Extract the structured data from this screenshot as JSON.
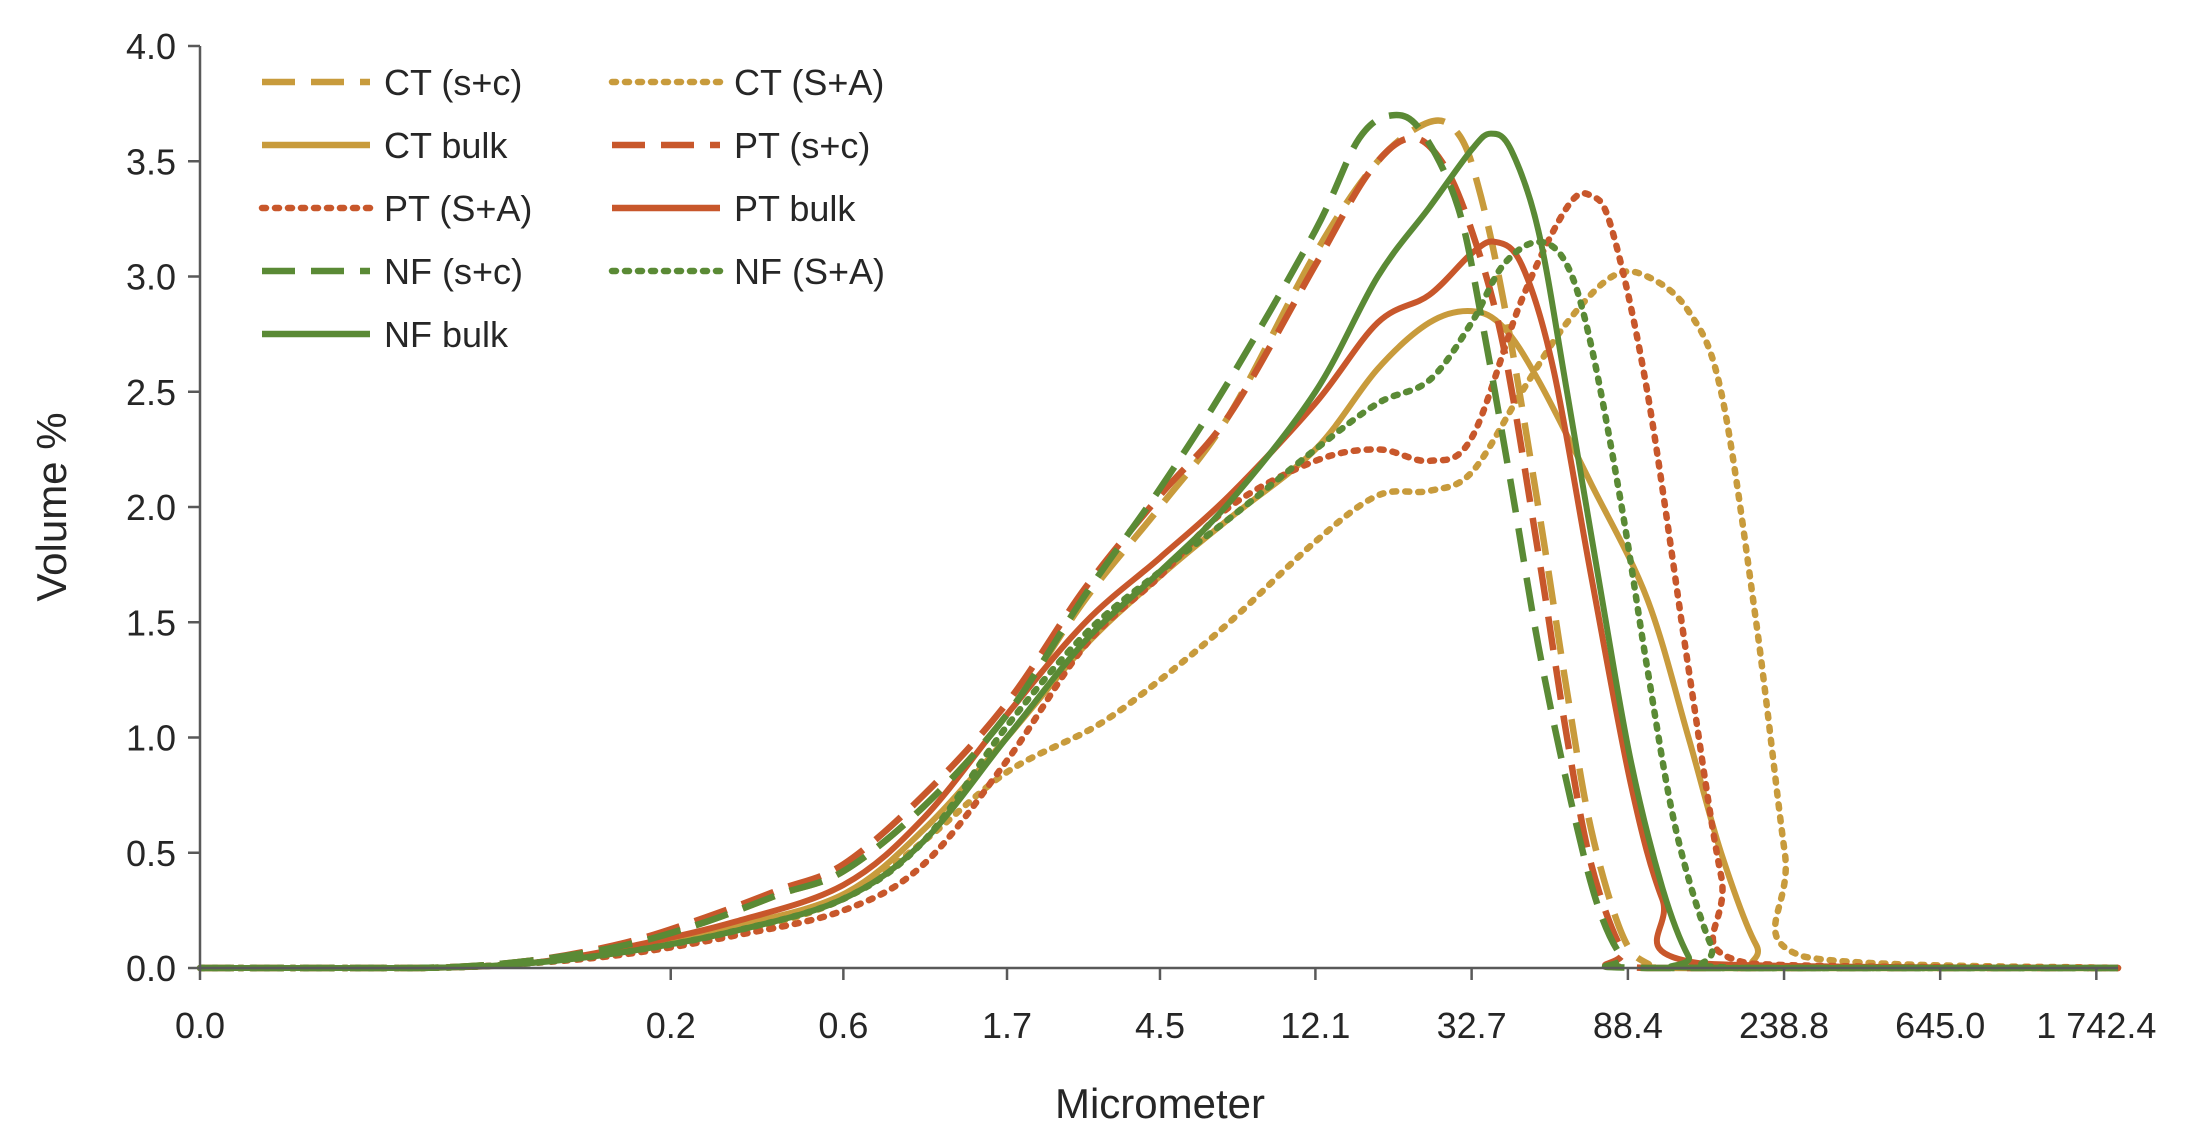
{
  "chart_data": {
    "type": "line",
    "title": "",
    "xlabel": "Micrometer",
    "ylabel": "Volume %",
    "x_scale": "log",
    "x_tick_labels": [
      "0.0",
      "0.2",
      "0.6",
      "1.7",
      "4.5",
      "12.1",
      "32.7",
      "88.4",
      "238.8",
      "645.0",
      "1 742.4"
    ],
    "x_tick_values": [
      0.01,
      0.2,
      0.6,
      1.7,
      4.5,
      12.1,
      32.7,
      88.4,
      238.8,
      645.0,
      1742.4
    ],
    "xlim": [
      0.01,
      2000
    ],
    "ylim": [
      0,
      4
    ],
    "y_ticks": [
      "0.0",
      "0.5",
      "1.0",
      "1.5",
      "2.0",
      "2.5",
      "3.0",
      "3.5",
      "4.0"
    ],
    "grid": false,
    "legend_position": "top-left",
    "colors": {
      "CT": "#C89B3C",
      "PT": "#C8572B",
      "NF": "#5A8A35",
      "axis": "#595959",
      "text": "#262626"
    },
    "series": [
      {
        "name": "CT (s+c)",
        "color": "#C89B3C",
        "style": "dashed",
        "x": [
          0.01,
          0.04,
          0.08,
          0.15,
          0.25,
          0.4,
          0.6,
          1.0,
          1.7,
          2.8,
          4.5,
          7.0,
          12.1,
          18.0,
          25.0,
          30.0,
          34.0,
          40.0,
          50.0,
          60.0,
          70.0,
          85.0,
          100.0,
          130.0,
          2000.0
        ],
        "y": [
          0,
          0,
          0.03,
          0.1,
          0.2,
          0.32,
          0.42,
          0.7,
          1.1,
          1.6,
          2.0,
          2.4,
          3.1,
          3.5,
          3.67,
          3.62,
          3.4,
          2.9,
          2.0,
          1.2,
          0.6,
          0.15,
          0.02,
          0,
          0
        ]
      },
      {
        "name": "CT (S+A)",
        "color": "#C89B3C",
        "style": "dotted",
        "x": [
          0.01,
          0.04,
          0.08,
          0.15,
          0.3,
          0.6,
          1.0,
          1.7,
          3.0,
          4.5,
          7.0,
          12.1,
          18.0,
          25.0,
          32.7,
          45.0,
          60.0,
          80.0,
          100.0,
          130.0,
          160.0,
          200.0,
          240.0,
          270.0,
          2000.0
        ],
        "y": [
          0,
          0,
          0.02,
          0.07,
          0.15,
          0.3,
          0.55,
          0.85,
          1.05,
          1.25,
          1.5,
          1.85,
          2.05,
          2.07,
          2.15,
          2.5,
          2.8,
          3.0,
          3.0,
          2.85,
          2.5,
          1.5,
          0.5,
          0.05,
          0
        ]
      },
      {
        "name": "CT bulk",
        "color": "#C89B3C",
        "style": "solid",
        "x": [
          0.01,
          0.04,
          0.08,
          0.15,
          0.3,
          0.6,
          1.0,
          1.7,
          2.8,
          4.5,
          7.0,
          12.1,
          18.0,
          25.0,
          32.7,
          40.0,
          50.0,
          70.0,
          100.0,
          130.0,
          160.0,
          200.0,
          240.0,
          2000.0
        ],
        "y": [
          0,
          0,
          0.02,
          0.08,
          0.18,
          0.32,
          0.6,
          1.0,
          1.4,
          1.7,
          1.95,
          2.25,
          2.6,
          2.8,
          2.85,
          2.78,
          2.55,
          2.1,
          1.6,
          1.0,
          0.5,
          0.1,
          0,
          0
        ]
      },
      {
        "name": "PT (s+c)",
        "color": "#C8572B",
        "style": "dashed",
        "x": [
          0.01,
          0.04,
          0.08,
          0.15,
          0.25,
          0.4,
          0.6,
          1.0,
          1.7,
          2.8,
          4.5,
          7.0,
          12.1,
          17.0,
          22.0,
          27.0,
          32.7,
          40.0,
          50.0,
          60.0,
          70.0,
          85.0,
          100.0,
          2000.0
        ],
        "y": [
          0,
          0,
          0.03,
          0.11,
          0.22,
          0.34,
          0.45,
          0.75,
          1.15,
          1.65,
          2.05,
          2.4,
          3.05,
          3.45,
          3.6,
          3.5,
          3.2,
          2.7,
          1.8,
          1.0,
          0.45,
          0.08,
          0,
          0
        ]
      },
      {
        "name": "PT (S+A)",
        "color": "#C8572B",
        "style": "dotted",
        "x": [
          0.01,
          0.04,
          0.08,
          0.15,
          0.3,
          0.6,
          1.0,
          1.7,
          2.8,
          4.5,
          7.0,
          12.1,
          18.0,
          25.0,
          32.7,
          45.0,
          60.0,
          70.0,
          80.0,
          100.0,
          130.0,
          160.0,
          190.0,
          2000.0
        ],
        "y": [
          0,
          0,
          0.02,
          0.06,
          0.14,
          0.25,
          0.45,
          0.9,
          1.4,
          1.7,
          2.0,
          2.2,
          2.25,
          2.2,
          2.3,
          2.9,
          3.3,
          3.35,
          3.2,
          2.5,
          1.3,
          0.4,
          0.02,
          0
        ]
      },
      {
        "name": "PT bulk",
        "color": "#C8572B",
        "style": "solid",
        "x": [
          0.01,
          0.04,
          0.08,
          0.15,
          0.3,
          0.6,
          1.0,
          1.7,
          2.8,
          4.5,
          7.0,
          12.1,
          18.0,
          25.0,
          32.7,
          38.0,
          45.0,
          55.0,
          70.0,
          90.0,
          110.0,
          140.0,
          2000.0
        ],
        "y": [
          0,
          0,
          0.02,
          0.09,
          0.2,
          0.36,
          0.65,
          1.1,
          1.5,
          1.78,
          2.05,
          2.45,
          2.8,
          2.92,
          3.1,
          3.15,
          3.05,
          2.6,
          1.7,
          0.8,
          0.3,
          0.02,
          0
        ]
      },
      {
        "name": "NF (s+c)",
        "color": "#5A8A35",
        "style": "dashed",
        "x": [
          0.01,
          0.04,
          0.08,
          0.15,
          0.25,
          0.4,
          0.6,
          1.0,
          1.7,
          2.8,
          4.5,
          7.0,
          12.1,
          16.0,
          20.0,
          24.0,
          30.0,
          35.0,
          42.0,
          50.0,
          60.0,
          72.0,
          85.0,
          100.0,
          2000.0
        ],
        "y": [
          0,
          0,
          0.03,
          0.1,
          0.2,
          0.32,
          0.42,
          0.7,
          1.1,
          1.62,
          2.08,
          2.55,
          3.2,
          3.6,
          3.7,
          3.62,
          3.3,
          2.8,
          2.1,
          1.4,
          0.8,
          0.3,
          0.05,
          0,
          0
        ]
      },
      {
        "name": "NF (S+A)",
        "color": "#5A8A35",
        "style": "dotted",
        "x": [
          0.01,
          0.04,
          0.08,
          0.15,
          0.3,
          0.6,
          1.0,
          1.7,
          2.8,
          4.5,
          7.0,
          12.1,
          18.0,
          25.0,
          32.7,
          40.0,
          50.0,
          60.0,
          70.0,
          85.0,
          100.0,
          120.0,
          150.0,
          175.0,
          2000.0
        ],
        "y": [
          0,
          0,
          0.02,
          0.07,
          0.16,
          0.3,
          0.55,
          1.05,
          1.45,
          1.72,
          1.95,
          2.25,
          2.45,
          2.55,
          2.8,
          3.05,
          3.15,
          3.05,
          2.7,
          2.0,
          1.3,
          0.6,
          0.1,
          0,
          0
        ]
      },
      {
        "name": "NF bulk",
        "color": "#5A8A35",
        "style": "solid",
        "x": [
          0.01,
          0.04,
          0.08,
          0.15,
          0.3,
          0.6,
          1.0,
          1.7,
          2.8,
          4.5,
          7.0,
          12.1,
          18.0,
          25.0,
          32.7,
          37.0,
          42.0,
          50.0,
          60.0,
          75.0,
          90.0,
          110.0,
          130.0,
          145.0,
          2000.0
        ],
        "y": [
          0,
          0,
          0.02,
          0.07,
          0.16,
          0.3,
          0.55,
          1.0,
          1.42,
          1.72,
          2.02,
          2.5,
          3.0,
          3.3,
          3.55,
          3.62,
          3.55,
          3.2,
          2.5,
          1.6,
          0.9,
          0.35,
          0.05,
          0,
          0
        ]
      }
    ]
  }
}
